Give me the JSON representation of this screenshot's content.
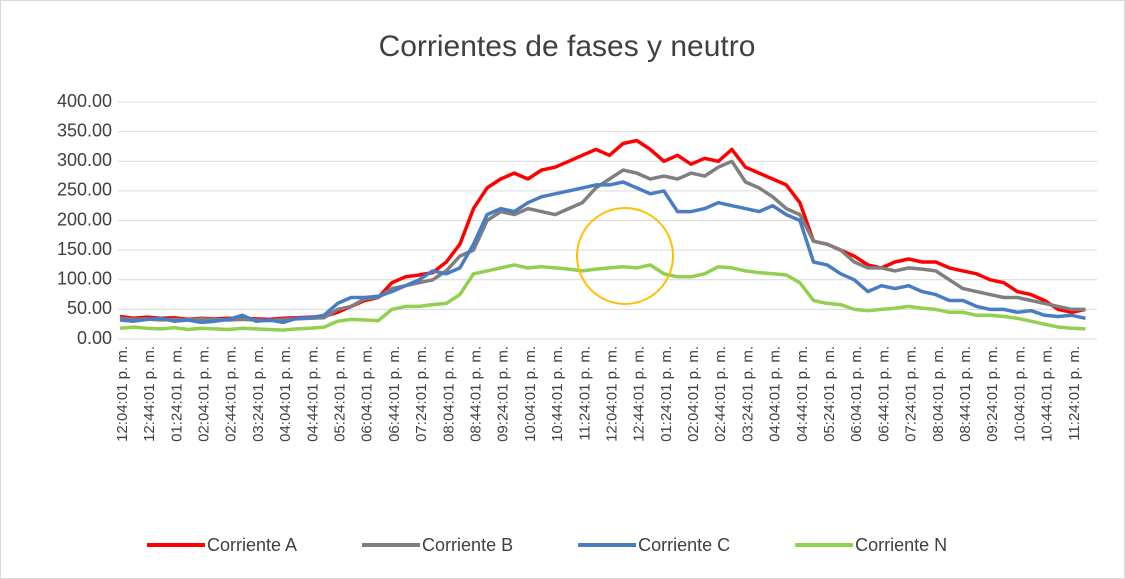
{
  "chart_data": {
    "type": "line",
    "title": "Corrientes de fases y neutro",
    "categories": [
      "12:04:01 p. m.",
      null,
      "12:44:01 p. m.",
      null,
      "01:24:01 p. m.",
      null,
      "02:04:01 p. m.",
      null,
      "02:44:01 p. m.",
      null,
      "03:24:01 p. m.",
      null,
      "04:04:01 p. m.",
      null,
      "04:44:01 p. m.",
      null,
      "05:24:01 p. m.",
      null,
      "06:04:01 p. m.",
      null,
      "06:44:01 p. m.",
      null,
      "07:24:01 p. m.",
      null,
      "08:04:01 p. m.",
      null,
      "08:44:01 p. m.",
      null,
      "09:24:01 p. m.",
      null,
      "10:04:01 p. m.",
      null,
      "10:44:01 p. m.",
      null,
      "11:24:01 p. m.",
      null,
      "12:04:01 p. m.",
      null,
      "12:44:01 p. m.",
      null,
      "01:24:01 p. m.",
      null,
      "02:04:01 p. m.",
      null,
      "02:44:01 p. m.",
      null,
      "03:24:01 p. m.",
      null,
      "04:04:01 p. m.",
      null,
      "04:44:01 p. m.",
      null,
      "05:24:01 p. m.",
      null,
      "06:04:01 p. m.",
      null,
      "06:44:01 p. m.",
      null,
      "07:24:01 p. m.",
      null,
      "08:04:01 p. m.",
      null,
      "08:44:01 p. m.",
      null,
      "09:24:01 p. m.",
      null,
      "10:04:01 p. m.",
      null,
      "10:44:01 p. m.",
      null,
      "11:24:01 p. m.",
      null
    ],
    "series": [
      {
        "name": "Corriente A",
        "color": "#ff0000",
        "values": [
          38,
          35,
          37,
          35,
          36,
          33,
          35,
          34,
          35,
          35,
          34,
          33,
          35,
          36,
          37,
          38,
          45,
          55,
          65,
          70,
          95,
          105,
          108,
          112,
          130,
          160,
          220,
          255,
          270,
          280,
          270,
          285,
          290,
          300,
          310,
          320,
          310,
          330,
          335,
          320,
          300,
          310,
          295,
          305,
          300,
          320,
          290,
          280,
          270,
          260,
          230,
          165,
          160,
          150,
          140,
          125,
          120,
          130,
          135,
          130,
          130,
          120,
          115,
          110,
          100,
          95,
          80,
          75,
          65,
          50,
          45,
          50
        ]
      },
      {
        "name": "Corriente B",
        "color": "#7f7f7f",
        "values": [
          35,
          33,
          34,
          32,
          33,
          32,
          34,
          33,
          32,
          33,
          32,
          31,
          33,
          34,
          35,
          36,
          50,
          55,
          68,
          70,
          85,
          90,
          95,
          100,
          115,
          140,
          150,
          200,
          215,
          210,
          220,
          215,
          210,
          220,
          230,
          255,
          270,
          285,
          280,
          270,
          275,
          270,
          280,
          275,
          290,
          300,
          265,
          255,
          240,
          220,
          210,
          165,
          160,
          150,
          130,
          120,
          120,
          115,
          120,
          118,
          115,
          100,
          85,
          80,
          75,
          70,
          70,
          65,
          60,
          55,
          50,
          50
        ]
      },
      {
        "name": "Corriente C",
        "color": "#4a7cc4",
        "values": [
          32,
          30,
          33,
          35,
          30,
          32,
          28,
          30,
          33,
          40,
          30,
          32,
          28,
          35,
          36,
          40,
          60,
          70,
          70,
          72,
          80,
          90,
          100,
          115,
          110,
          120,
          160,
          210,
          220,
          215,
          230,
          240,
          245,
          250,
          255,
          260,
          260,
          265,
          255,
          245,
          250,
          215,
          215,
          220,
          230,
          225,
          220,
          215,
          225,
          210,
          200,
          130,
          125,
          110,
          100,
          80,
          90,
          85,
          90,
          80,
          75,
          65,
          65,
          55,
          50,
          50,
          45,
          48,
          40,
          38,
          40,
          35
        ]
      },
      {
        "name": "Corriente N",
        "color": "#92d050",
        "values": [
          18,
          20,
          18,
          17,
          19,
          16,
          18,
          17,
          16,
          18,
          17,
          16,
          15,
          17,
          18,
          20,
          30,
          33,
          32,
          31,
          50,
          55,
          55,
          58,
          60,
          75,
          110,
          115,
          120,
          125,
          120,
          122,
          120,
          118,
          115,
          118,
          120,
          122,
          120,
          125,
          110,
          105,
          105,
          110,
          122,
          120,
          115,
          112,
          110,
          108,
          95,
          65,
          60,
          58,
          50,
          48,
          50,
          52,
          55,
          52,
          50,
          45,
          45,
          40,
          40,
          38,
          35,
          30,
          25,
          20,
          18,
          17
        ]
      }
    ],
    "ylim": [
      0,
      400
    ],
    "yticks": [
      {
        "value": 0,
        "label": "0.00"
      },
      {
        "value": 50,
        "label": "50.00"
      },
      {
        "value": 100,
        "label": "100.00"
      },
      {
        "value": 150,
        "label": "150.00"
      },
      {
        "value": 200,
        "label": "200.00"
      },
      {
        "value": 250,
        "label": "250.00"
      },
      {
        "value": 300,
        "label": "300.00"
      },
      {
        "value": 350,
        "label": "350.00"
      },
      {
        "value": 400,
        "label": "400.00"
      }
    ],
    "grid": true,
    "legend": "bottom"
  }
}
